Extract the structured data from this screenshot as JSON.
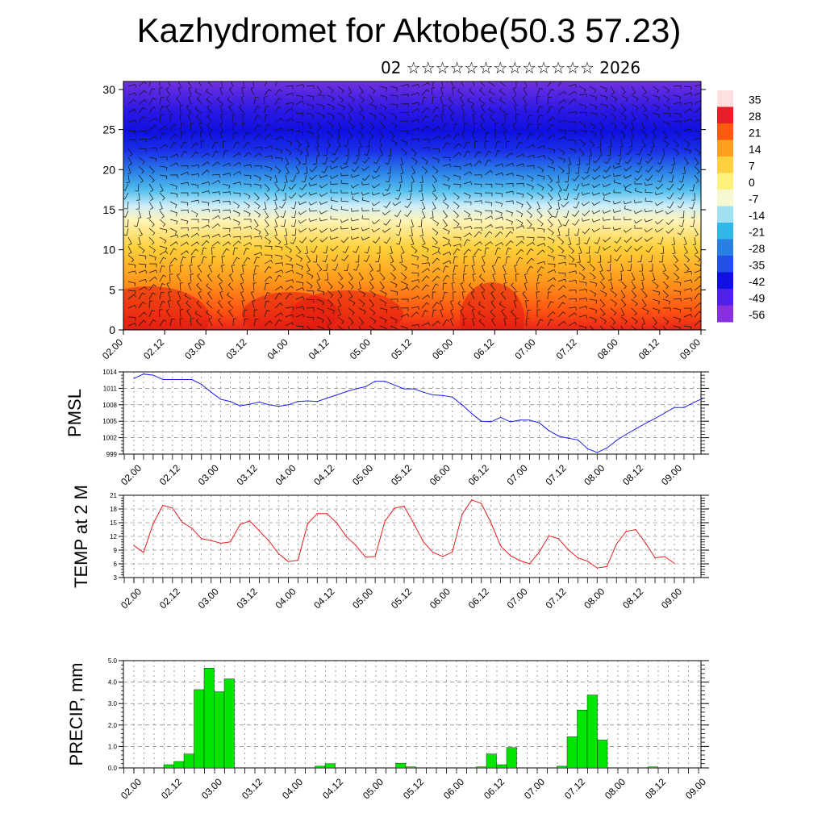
{
  "title": "Kazhydromet for Aktobe(50.3 57.23)",
  "date_line": "02 ☆☆☆☆☆☆☆☆☆☆☆☆☆ 2026",
  "time_ticks": [
    "02.00",
    "02.12",
    "03.00",
    "03.12",
    "04.00",
    "04.12",
    "05.00",
    "05.12",
    "06.00",
    "06.12",
    "07.00",
    "07.12",
    "08.00",
    "08.12",
    "09.00"
  ],
  "chart_data": [
    {
      "type": "heatmap",
      "description_kind": "height-time cross section with wind barbs",
      "y_ticks": [
        0,
        5,
        10,
        15,
        20,
        25,
        30
      ],
      "ylim": [
        0,
        31
      ],
      "x_ticks": [
        "02.00",
        "02.12",
        "03.00",
        "03.12",
        "04.00",
        "04.12",
        "05.00",
        "05.12",
        "06.00",
        "06.12",
        "07.00",
        "07.12",
        "08.00",
        "08.12",
        "09.00"
      ],
      "colorbar_labels": [
        "35",
        "28",
        "21",
        "14",
        "7",
        "0",
        "-7",
        "-14",
        "-21",
        "-28",
        "-35",
        "-42",
        "-49",
        "-56"
      ],
      "colorscale": [
        "#ffe0e0",
        "#e8202a",
        "#ff5a10",
        "#ffa020",
        "#ffd040",
        "#fff080",
        "#f8f8d0",
        "#a0e0f0",
        "#30b8e8",
        "#2880e0",
        "#2050e8",
        "#1010e0",
        "#5020e8",
        "#8830e0"
      ]
    },
    {
      "type": "line",
      "ylabel": "PMSL",
      "y_ticks": [
        999,
        1002,
        1005,
        1008,
        1011,
        1014
      ],
      "ylim": [
        999,
        1014
      ],
      "x_ticks": [
        "02.00",
        "02.12",
        "03.00",
        "03.12",
        "04.00",
        "04.12",
        "05.00",
        "05.12",
        "06.00",
        "06.12",
        "07.00",
        "07.12",
        "08.00",
        "08.12",
        "09.00"
      ],
      "x_step_hours": 3,
      "color": "#1e1ee6",
      "values": [
        1012.8,
        1013.6,
        1013.4,
        1012.6,
        1012.6,
        1012.6,
        1012.6,
        1011.7,
        1010.3,
        1009,
        1008.6,
        1007.8,
        1008.1,
        1008.5,
        1008,
        1007.7,
        1008,
        1008.6,
        1008.7,
        1008.6,
        1009.2,
        1009.8,
        1010.4,
        1010.9,
        1011.3,
        1012.3,
        1012.3,
        1011.6,
        1010.9,
        1010.9,
        1010.3,
        1009.8,
        1009.7,
        1009.4,
        1008,
        1006.4,
        1005,
        1004.9,
        1005.7,
        1004.9,
        1005.2,
        1005.2,
        1004.7,
        1003.3,
        1002.3,
        1001.9,
        1001.6,
        1000,
        999.3,
        1000.1,
        1001.5,
        1002.6,
        1003.6,
        1004.6,
        1005.5,
        1006.5,
        1007.5,
        1007.5,
        1008.4,
        1009.2
      ]
    },
    {
      "type": "line",
      "ylabel": "TEMP at 2 M",
      "y_ticks": [
        3,
        6,
        9,
        12,
        15,
        18,
        21
      ],
      "ylim": [
        3,
        21
      ],
      "x_ticks": [
        "02.00",
        "02.12",
        "03.00",
        "03.12",
        "04.00",
        "04.12",
        "05.00",
        "05.12",
        "06.00",
        "06.12",
        "07.00",
        "07.12",
        "08.00",
        "08.12",
        "09.00"
      ],
      "x_step_hours": 3,
      "color": "#e61e1e",
      "values": [
        10,
        8.5,
        14.8,
        18.8,
        18.2,
        15.1,
        13.8,
        11.5,
        11.1,
        10.5,
        10.8,
        14.6,
        15.4,
        13.2,
        11,
        8.2,
        6.5,
        6.8,
        14.8,
        17,
        17,
        15,
        12,
        10,
        7.5,
        7.6,
        15.3,
        18.2,
        18.6,
        14.8,
        10.8,
        8.5,
        7.6,
        8.6,
        16.8,
        20,
        19.2,
        15,
        9.9,
        7.8,
        6.7,
        6,
        8.6,
        12.1,
        11.5,
        9.1,
        7.3,
        6.6,
        5.1,
        5.4,
        10.3,
        13.1,
        13.5,
        10.6,
        7.3,
        7.6,
        6.1
      ]
    },
    {
      "type": "bar",
      "ylabel": "PRECIP, mm",
      "y_ticks": [
        "0.0",
        "1.0",
        "2.0",
        "3.0",
        "4.0",
        "5.0"
      ],
      "ylim": [
        0,
        5
      ],
      "x_ticks": [
        "02.00",
        "02.12",
        "03.00",
        "03.12",
        "04.00",
        "04.12",
        "05.00",
        "05.12",
        "06.00",
        "06.12",
        "07.00",
        "07.12",
        "08.00",
        "08.12",
        "09.00"
      ],
      "x_step_hours": 3,
      "color": "#00e600",
      "values": [
        0,
        0,
        0,
        0,
        0.15,
        0.3,
        0.65,
        3.65,
        4.65,
        3.55,
        4.15,
        0,
        0,
        0,
        0,
        0,
        0,
        0,
        0,
        0.08,
        0.2,
        0,
        0,
        0,
        0,
        0,
        0,
        0.22,
        0.05,
        0,
        0,
        0,
        0,
        0,
        0,
        0.05,
        0.65,
        0.15,
        0.95,
        0,
        0,
        0,
        0,
        0.08,
        1.45,
        2.7,
        3.4,
        1.3,
        0,
        0,
        0,
        0,
        0.05,
        0,
        0,
        0,
        0,
        0,
        0
      ]
    }
  ]
}
